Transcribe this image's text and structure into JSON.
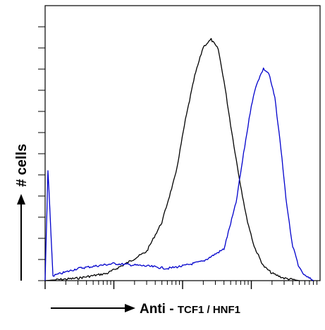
{
  "chart_data": {
    "type": "line",
    "title": "",
    "xlabel": "Anti",
    "xlabel_separator": " - ",
    "xlabel_target": "TCF1 / HNF1",
    "ylabel": "# cells",
    "x_scale": "log",
    "xlim": [
      1,
      10000
    ],
    "ylim": [
      0,
      110
    ],
    "grid": false,
    "legend": "none",
    "series": [
      {
        "color": "#000000",
        "x": [
          1,
          3,
          8,
          15,
          30,
          50,
          80,
          110,
          150,
          200,
          260,
          330,
          400,
          500,
          650,
          850,
          1100,
          1500,
          2000,
          3000,
          5000
        ],
        "y": [
          0,
          1,
          3,
          7,
          12,
          24,
          44,
          66,
          84,
          96,
          99,
          95,
          82,
          64,
          44,
          26,
          14,
          6,
          3,
          1,
          0
        ]
      },
      {
        "color": "#0000cc",
        "x": [
          1,
          1.1,
          1.3,
          3,
          10,
          30,
          60,
          100,
          200,
          400,
          600,
          800,
          1000,
          1200,
          1500,
          1800,
          2200,
          2700,
          3300,
          4000,
          5000,
          6000,
          8000
        ],
        "y": [
          0,
          45,
          2,
          5,
          7,
          6,
          5,
          6,
          8,
          13,
          32,
          55,
          72,
          81,
          87,
          85,
          75,
          54,
          30,
          14,
          5,
          2,
          0
        ]
      }
    ]
  }
}
